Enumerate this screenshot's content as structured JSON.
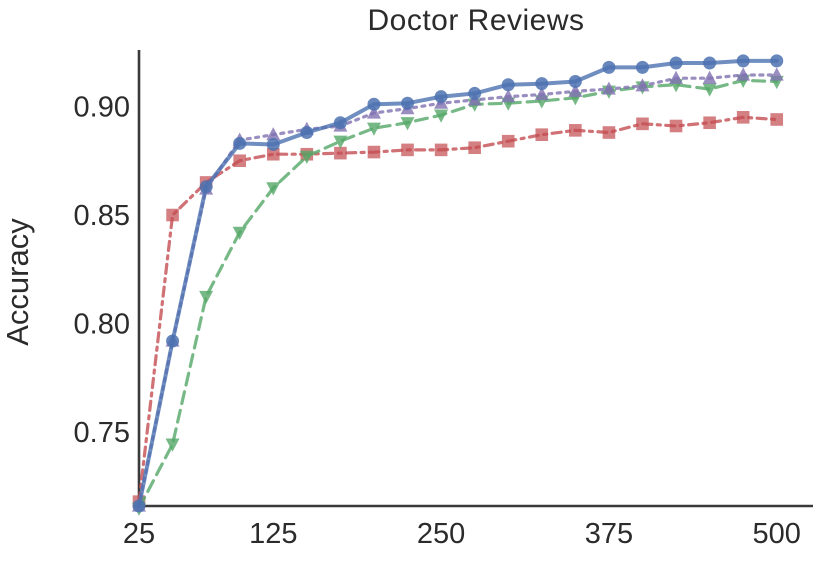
{
  "chart_data": {
    "type": "line",
    "title": "Doctor Reviews",
    "xlabel": "",
    "ylabel": "Accuracy",
    "grid": false,
    "legend": "none",
    "xlim": [
      25,
      527
    ],
    "ylim": [
      0.716,
      0.926
    ],
    "xticks": [
      25,
      125,
      250,
      375,
      500
    ],
    "xtick_labels": [
      "25",
      "125",
      "250",
      "375",
      "500"
    ],
    "yticks": [
      0.75,
      0.8,
      0.85,
      0.9
    ],
    "ytick_labels": [
      "0.75",
      "0.80",
      "0.85",
      "0.90"
    ],
    "x": [
      25,
      50,
      75,
      100,
      125,
      150,
      175,
      200,
      225,
      250,
      275,
      300,
      325,
      350,
      375,
      400,
      425,
      450,
      475,
      500
    ],
    "series": [
      {
        "name": "red-dashdot-squares",
        "color": "#c44e52",
        "linestyle": "dashdot",
        "marker": "square",
        "values": [
          0.718,
          0.85,
          0.865,
          0.875,
          0.878,
          0.878,
          0.8785,
          0.879,
          0.88,
          0.88,
          0.881,
          0.884,
          0.887,
          0.889,
          0.888,
          0.892,
          0.891,
          0.8925,
          0.895,
          0.894
        ]
      },
      {
        "name": "green-dashed-triangles-down",
        "color": "#55a868",
        "linestyle": "dashed",
        "marker": "triangle-down",
        "values": [
          0.715,
          0.7445,
          0.8125,
          0.842,
          0.8625,
          0.877,
          0.884,
          0.89,
          0.8925,
          0.896,
          0.901,
          0.9015,
          0.9025,
          0.904,
          0.907,
          0.909,
          0.91,
          0.908,
          0.912,
          0.9115
        ]
      },
      {
        "name": "purple-dotted-triangles-up",
        "color": "#8172b2",
        "linestyle": "dotted",
        "marker": "triangle-up",
        "values": [
          0.716,
          0.792,
          0.862,
          0.8845,
          0.887,
          0.8895,
          0.891,
          0.897,
          0.899,
          0.9015,
          0.903,
          0.9045,
          0.9055,
          0.907,
          0.908,
          0.9095,
          0.913,
          0.913,
          0.9145,
          0.9145
        ]
      },
      {
        "name": "blue-solid-circles",
        "color": "#4c72b0",
        "linestyle": "solid",
        "marker": "circle",
        "values": [
          0.716,
          0.792,
          0.863,
          0.883,
          0.8825,
          0.888,
          0.8925,
          0.901,
          0.9015,
          0.9045,
          0.906,
          0.91,
          0.9105,
          0.9115,
          0.918,
          0.918,
          0.92,
          0.92,
          0.921,
          0.921
        ]
      }
    ],
    "axis_color": "#3a3a3a",
    "tick_label_color": "#2b2b2b"
  }
}
